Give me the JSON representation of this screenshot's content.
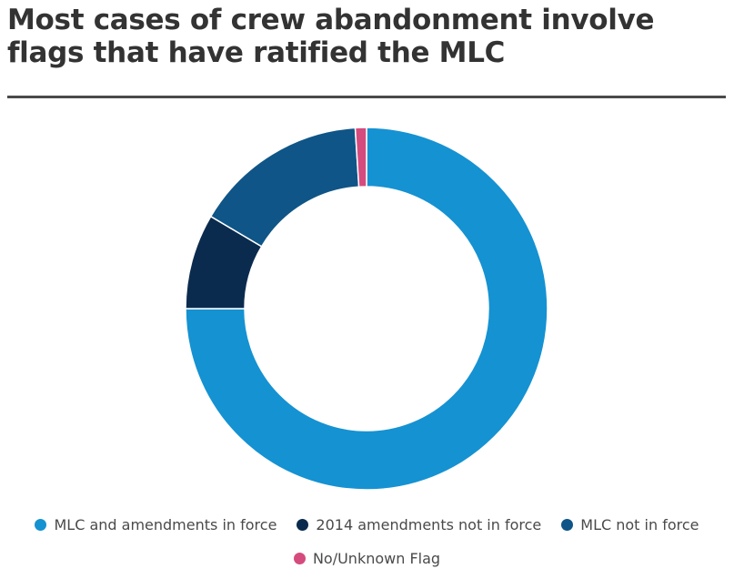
{
  "title": "Most cases of crew abandonment involve flags that have ratified the MLC",
  "chart_data": {
    "type": "pie",
    "donut": true,
    "categories": [
      "MLC and amendments in force",
      "2014 amendments not in force",
      "MLC not in force",
      "No/Unknown Flag"
    ],
    "values": [
      75,
      8.5,
      15.5,
      1
    ],
    "colors": [
      "#1592d2",
      "#0b2b4e",
      "#0f5587",
      "#d54b7e"
    ],
    "legend_position": "bottom"
  }
}
